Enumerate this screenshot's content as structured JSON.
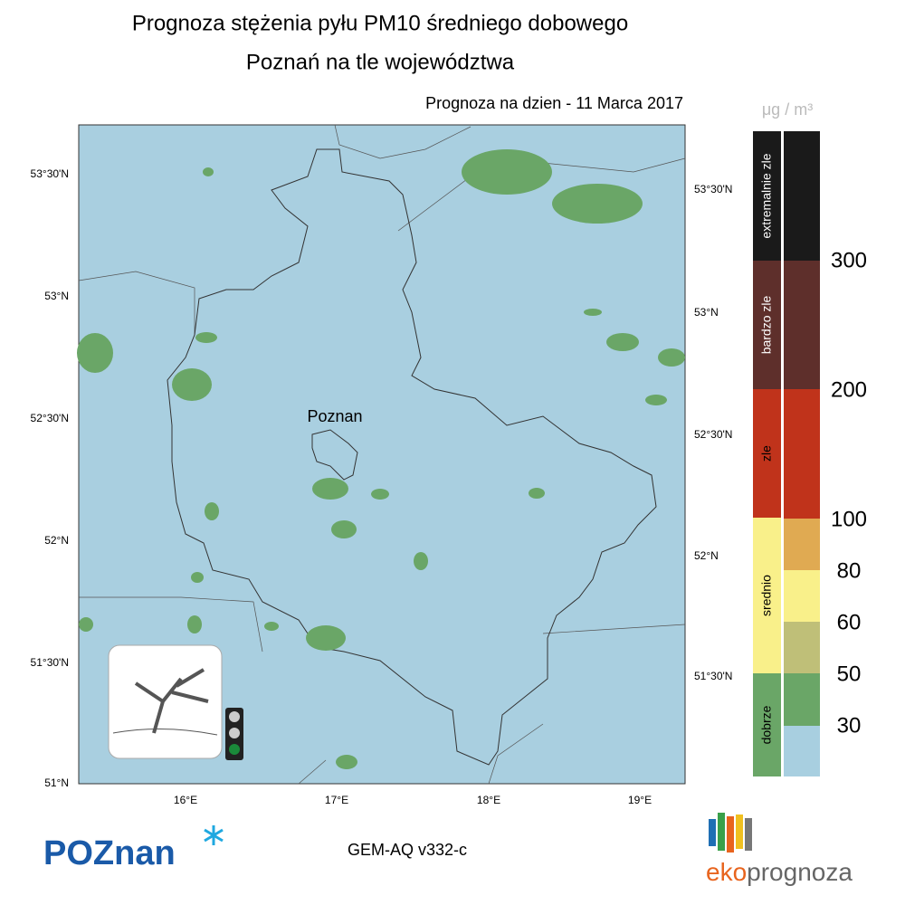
{
  "header": {
    "title": "Prognoza stężenia pyłu PM10 średniego dobowego",
    "subtitle": "Poznań na tle województwa",
    "date": "Prognoza na dzien -  11 Marca 2017"
  },
  "map": {
    "city": "Poznan",
    "lat_labels_left": [
      "53°30'N",
      "53°N",
      "52°30'N",
      "52°N",
      "51°30'N",
      "51°N"
    ],
    "lat_labels_right": [
      "53°30'N",
      "53°N",
      "52°30'N",
      "52°N",
      "51°30'N"
    ],
    "lon_labels": [
      "16°E",
      "17°E",
      "18°E",
      "19°E"
    ]
  },
  "legend": {
    "unit": "μg / m³",
    "categories": [
      "extremalnie zle",
      "bardzo zle",
      "zle",
      "srednio",
      "dobrze"
    ],
    "thresholds": [
      300,
      200,
      100,
      80,
      60,
      50,
      30
    ]
  },
  "footer": {
    "logo": "POZnan",
    "model": "GEM-AQ v332-c",
    "brand_left": "eko",
    "brand_right": "prognoza"
  }
}
